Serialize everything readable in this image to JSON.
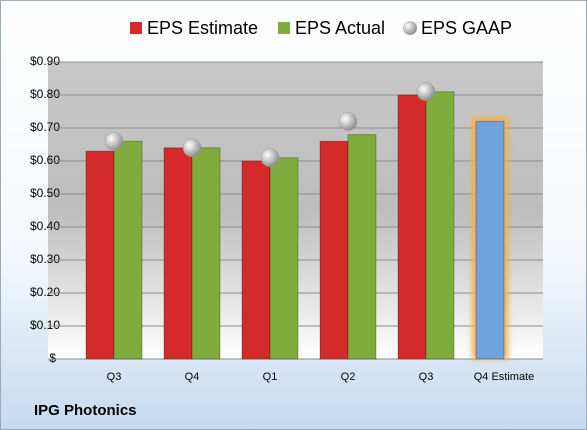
{
  "chart_data": {
    "type": "bar",
    "categories": [
      "Q3",
      "Q4",
      "Q1",
      "Q2",
      "Q3",
      "Q4 Estimate"
    ],
    "series": [
      {
        "name": "EPS Estimate",
        "color": "#d42a2a",
        "values": [
          0.63,
          0.64,
          0.6,
          0.66,
          0.8,
          0.72
        ]
      },
      {
        "name": "EPS Actual",
        "color": "#7fac3c",
        "values": [
          0.66,
          0.64,
          0.61,
          0.68,
          0.81,
          null
        ]
      },
      {
        "name": "EPS GAAP",
        "color": "#a8a8a8",
        "marker": "circle",
        "values": [
          0.66,
          0.64,
          0.61,
          0.72,
          0.81,
          null
        ]
      }
    ],
    "highlight_color": "#6fa3dc",
    "highlight_glow": "#f5b04a",
    "ylim": [
      0,
      0.9
    ],
    "yticks": [
      {
        "value": 0,
        "label": "$-"
      },
      {
        "value": 0.1,
        "label": "$0.10"
      },
      {
        "value": 0.2,
        "label": "$0.20"
      },
      {
        "value": 0.3,
        "label": "$0.30"
      },
      {
        "value": 0.4,
        "label": "$0.40"
      },
      {
        "value": 0.5,
        "label": "$0.50"
      },
      {
        "value": 0.6,
        "label": "$0.60"
      },
      {
        "value": 0.7,
        "label": "$0.70"
      },
      {
        "value": 0.8,
        "label": "$0.80"
      },
      {
        "value": 0.9,
        "label": "$0.90"
      }
    ],
    "grid": true,
    "legend": "top",
    "caption": "IPG Photonics"
  }
}
